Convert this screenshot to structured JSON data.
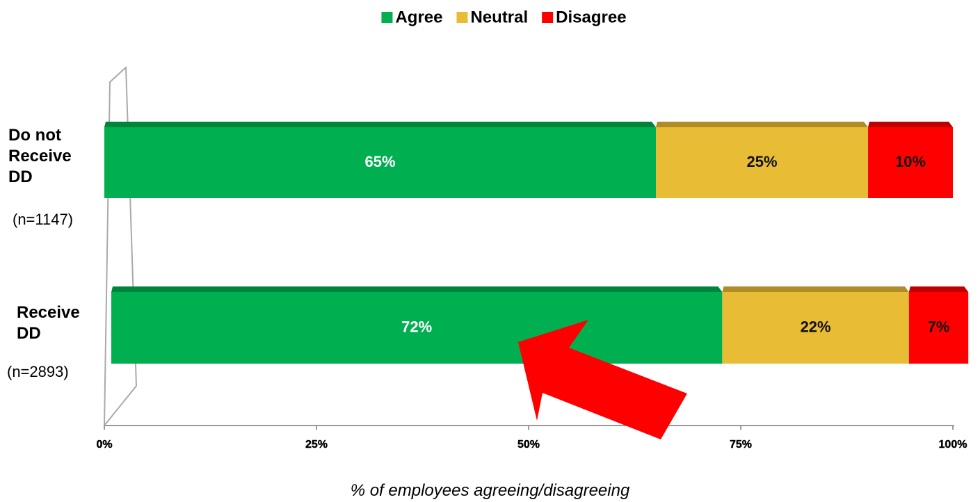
{
  "chart_data": {
    "type": "stacked_hbar",
    "categories": [
      "Do not Receive DD",
      "Receive DD"
    ],
    "category_notes": [
      "(n=1147)",
      "(n=2893)"
    ],
    "series": [
      {
        "name": "Agree",
        "color": "#00b050",
        "values": [
          65,
          72
        ],
        "value_labels": [
          "65%",
          "72%"
        ]
      },
      {
        "name": "Neutral",
        "color": "#e8bc35",
        "values": [
          25,
          22
        ],
        "value_labels": [
          "25%",
          "22%"
        ]
      },
      {
        "name": "Disagree",
        "color": "#ff0000",
        "values": [
          10,
          7
        ],
        "value_labels": [
          "10%",
          "7%"
        ]
      }
    ],
    "xlim": [
      0,
      100
    ],
    "xticks": [
      {
        "value": 0,
        "label": "0%"
      },
      {
        "value": 25,
        "label": "25%"
      },
      {
        "value": 50,
        "label": "50%"
      },
      {
        "value": 75,
        "label": "75%"
      },
      {
        "value": 100,
        "label": "100%"
      }
    ],
    "xlabel": "% of employees agreeing/disagreeing",
    "legend": "top"
  }
}
